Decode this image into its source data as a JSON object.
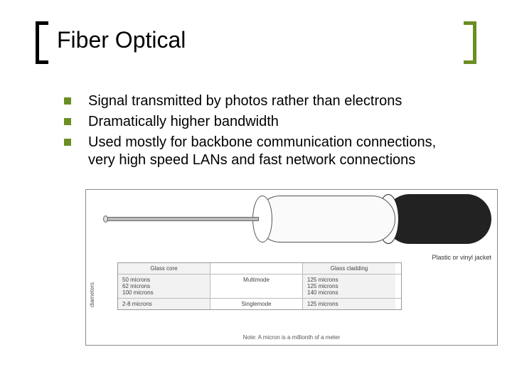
{
  "title": "Fiber Optical",
  "bullet_marker_color": "#6b8e23",
  "bracket_left_color": "#000000",
  "bracket_right_color": "#6b8e23",
  "bullets": [
    "Signal transmitted by photos rather than electrons",
    "Dramatically higher bandwidth",
    "Used mostly for backbone communication connections, very high speed LANs and fast network connections"
  ],
  "diagram": {
    "jacket_label": "Plastic or vinyl jacket",
    "diameters_label": "diameters",
    "note": "Note: A micron is a millionth of a meter",
    "table": {
      "header_left": "Glass core",
      "header_right": "Glass cladding",
      "rows": [
        {
          "left": "50 microns\n62 microns\n100 microns",
          "mid": "Multimode",
          "right": "125 microns\n125 microns\n140 microns"
        },
        {
          "left": "2-8 microns",
          "mid": "Singlemode",
          "right": "125 microns"
        }
      ]
    },
    "colors": {
      "core": "#bbbbbb",
      "cladding": "#fafafa",
      "jacket": "#222222",
      "border": "#888888"
    }
  }
}
